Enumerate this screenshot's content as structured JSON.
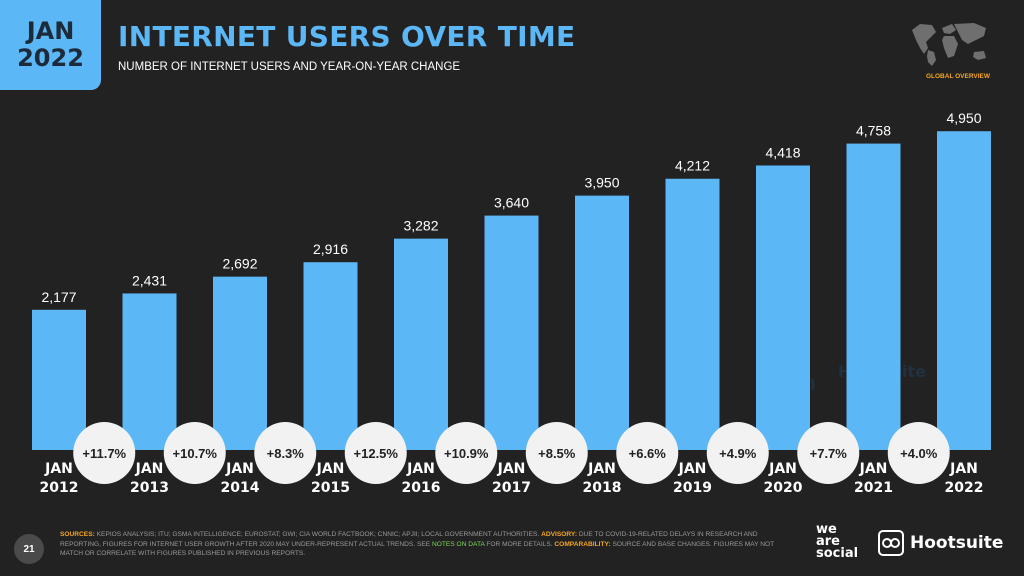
{
  "header": {
    "date_line1": "JAN",
    "date_line2": "2022",
    "title": "INTERNET USERS OVER TIME",
    "subtitle": "NUMBER OF INTERNET USERS AND YEAR-ON-YEAR CHANGE",
    "section_label": "GLOBAL OVERVIEW"
  },
  "footer": {
    "page_number": "21",
    "sources_label": "SOURCES:",
    "sources_text": "KEPIOS ANALYSIS; ITU; GSMA INTELLIGENCE; EUROSTAT; GWI; CIA WORLD FACTBOOK; CNNIC; APJII; LOCAL GOVERNMENT AUTHORITIES.",
    "advisory_label": "ADVISORY:",
    "advisory_text_a": "DUE TO COVID-19-RELATED DELAYS IN RESEARCH AND REPORTING, FIGURES FOR INTERNET USER GROWTH AFTER 2020 MAY UNDER-REPRESENT ACTUAL TRENDS. SEE",
    "notes_link": "NOTES ON DATA",
    "advisory_text_b": "FOR MORE DETAILS.",
    "comparability_label": "COMPARABILITY:",
    "comparability_text": "SOURCE AND BASE CHANGES. FIGURES MAY NOT MATCH OR CORRELATE WITH FIGURES PUBLISHED IN PREVIOUS REPORTS.",
    "logo_we": "we",
    "logo_are": "are",
    "logo_social": "social",
    "logo_hootsuite": "Hootsuite"
  },
  "colors": {
    "bar": "#5bb7f5",
    "background": "#222222",
    "badge_fill": "#f2f2f2",
    "badge_text": "#222222",
    "accent": "#f5a623"
  },
  "chart_data": {
    "type": "bar",
    "categories": [
      [
        "JAN",
        "2012"
      ],
      [
        "JAN",
        "2013"
      ],
      [
        "JAN",
        "2014"
      ],
      [
        "JAN",
        "2015"
      ],
      [
        "JAN",
        "2016"
      ],
      [
        "JAN",
        "2017"
      ],
      [
        "JAN",
        "2018"
      ],
      [
        "JAN",
        "2019"
      ],
      [
        "JAN",
        "2020"
      ],
      [
        "JAN",
        "2021"
      ],
      [
        "JAN",
        "2022"
      ]
    ],
    "values": [
      2177,
      2431,
      2692,
      2916,
      3282,
      3640,
      3950,
      4212,
      4418,
      4758,
      4950
    ],
    "value_labels": [
      "2,177",
      "2,431",
      "2,692",
      "2,916",
      "3,282",
      "3,640",
      "3,950",
      "4,212",
      "4,418",
      "4,758",
      "4,950"
    ],
    "yoy_change": [
      "+11.7%",
      "+10.7%",
      "+8.3%",
      "+12.5%",
      "+10.9%",
      "+8.5%",
      "+6.6%",
      "+4.9%",
      "+7.7%",
      "+4.0%"
    ],
    "title": "INTERNET USERS OVER TIME",
    "xlabel": "",
    "ylabel": "",
    "ylim": [
      0,
      5000
    ],
    "grid": false,
    "legend": "none"
  }
}
